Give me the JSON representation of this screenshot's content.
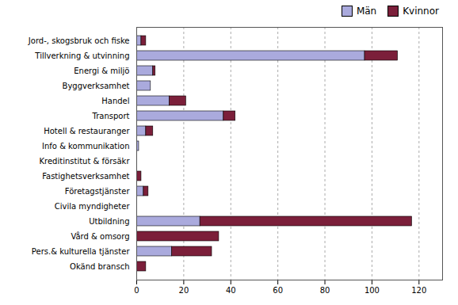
{
  "chart_data": {
    "type": "bar",
    "orientation": "horizontal",
    "stacked": true,
    "categories": [
      "Jord-, skogsbruk och fiske",
      "Tillverkning & utvinning",
      "Energi & miljö",
      "Byggverksamhet",
      "Handel",
      "Transport",
      "Hotell & restauranger",
      "Info & kommunikation",
      "Kreditinstitut & försäkr",
      "Fastighetsverksamhet",
      "Företagstjänster",
      "Civila myndigheter",
      "Utbildning",
      "Vård & omsorg",
      "Pers.& kulturella tjänster",
      "Okänd bransch"
    ],
    "series": [
      {
        "name": "Män",
        "color": "#aaaadd",
        "values": [
          2,
          97,
          7,
          6,
          14,
          37,
          4,
          1,
          0,
          0,
          3,
          0,
          27,
          0,
          15,
          0
        ]
      },
      {
        "name": "Kvinnor",
        "color": "#7b1f3a",
        "values": [
          2,
          14,
          1,
          0,
          7,
          5,
          3,
          0,
          0,
          2,
          2,
          0,
          90,
          35,
          17,
          4
        ]
      }
    ],
    "xlim": [
      0,
      130
    ],
    "xticks": [
      0,
      20,
      40,
      60,
      80,
      100,
      120
    ],
    "grid": true,
    "legend": "right"
  }
}
